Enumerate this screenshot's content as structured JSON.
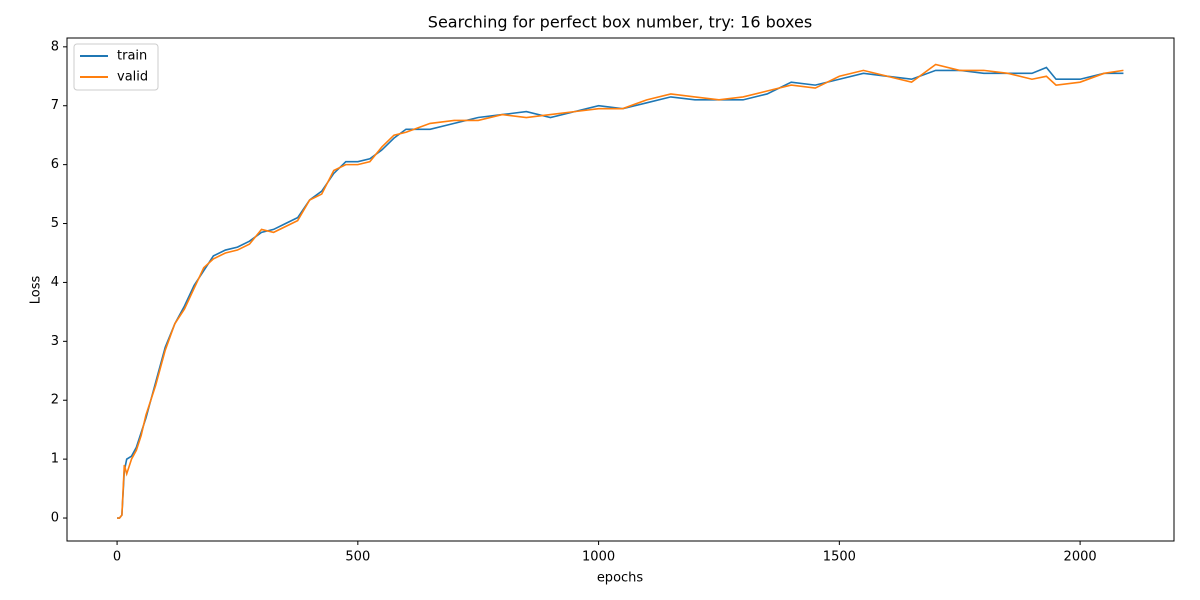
{
  "chart_data": {
    "type": "line",
    "title": "Searching for perfect box number, try: 16 boxes",
    "x_label": "epochs",
    "y_label": "Loss",
    "x": [
      0,
      5,
      10,
      15,
      20,
      30,
      40,
      50,
      60,
      80,
      100,
      120,
      140,
      160,
      180,
      200,
      225,
      250,
      275,
      300,
      325,
      350,
      375,
      400,
      425,
      450,
      475,
      500,
      525,
      550,
      575,
      600,
      650,
      700,
      750,
      800,
      850,
      900,
      950,
      1000,
      1050,
      1100,
      1150,
      1200,
      1250,
      1300,
      1350,
      1400,
      1450,
      1500,
      1550,
      1600,
      1650,
      1700,
      1750,
      1800,
      1850,
      1900,
      1930,
      1950,
      2000,
      2050,
      2090
    ],
    "series": [
      {
        "name": "train",
        "color": "#1f77b4",
        "values": [
          0,
          0,
          0.05,
          0.8,
          1.0,
          1.05,
          1.2,
          1.45,
          1.7,
          2.3,
          2.9,
          3.3,
          3.6,
          3.95,
          4.2,
          4.45,
          4.55,
          4.6,
          4.7,
          4.85,
          4.9,
          5.0,
          5.1,
          5.4,
          5.55,
          5.85,
          6.05,
          6.05,
          6.1,
          6.25,
          6.45,
          6.6,
          6.6,
          6.7,
          6.8,
          6.85,
          6.9,
          6.8,
          6.9,
          7.0,
          6.95,
          7.05,
          7.15,
          7.1,
          7.1,
          7.1,
          7.2,
          7.4,
          7.35,
          7.45,
          7.55,
          7.5,
          7.45,
          7.6,
          7.6,
          7.55,
          7.55,
          7.55,
          7.65,
          7.45,
          7.45,
          7.55,
          7.55
        ]
      },
      {
        "name": "valid",
        "color": "#ff7f0e",
        "values": [
          0,
          0,
          0.05,
          0.9,
          0.75,
          1.0,
          1.15,
          1.4,
          1.75,
          2.25,
          2.85,
          3.3,
          3.55,
          3.9,
          4.25,
          4.4,
          4.5,
          4.55,
          4.65,
          4.9,
          4.85,
          4.95,
          5.05,
          5.4,
          5.5,
          5.9,
          6.0,
          6.0,
          6.05,
          6.3,
          6.5,
          6.55,
          6.7,
          6.75,
          6.75,
          6.85,
          6.8,
          6.85,
          6.9,
          6.95,
          6.95,
          7.1,
          7.2,
          7.15,
          7.1,
          7.15,
          7.25,
          7.35,
          7.3,
          7.5,
          7.6,
          7.5,
          7.4,
          7.7,
          7.6,
          7.6,
          7.55,
          7.45,
          7.5,
          7.35,
          7.4,
          7.55,
          7.6
        ]
      }
    ],
    "xlim": [
      -104,
      2195
    ],
    "ylim": [
      -0.39,
      8.15
    ],
    "xticks": [
      0,
      500,
      1000,
      1500,
      2000
    ],
    "yticks": [
      0,
      1,
      2,
      3,
      4,
      5,
      6,
      7,
      8
    ],
    "grid": false,
    "legend": "upper left"
  }
}
